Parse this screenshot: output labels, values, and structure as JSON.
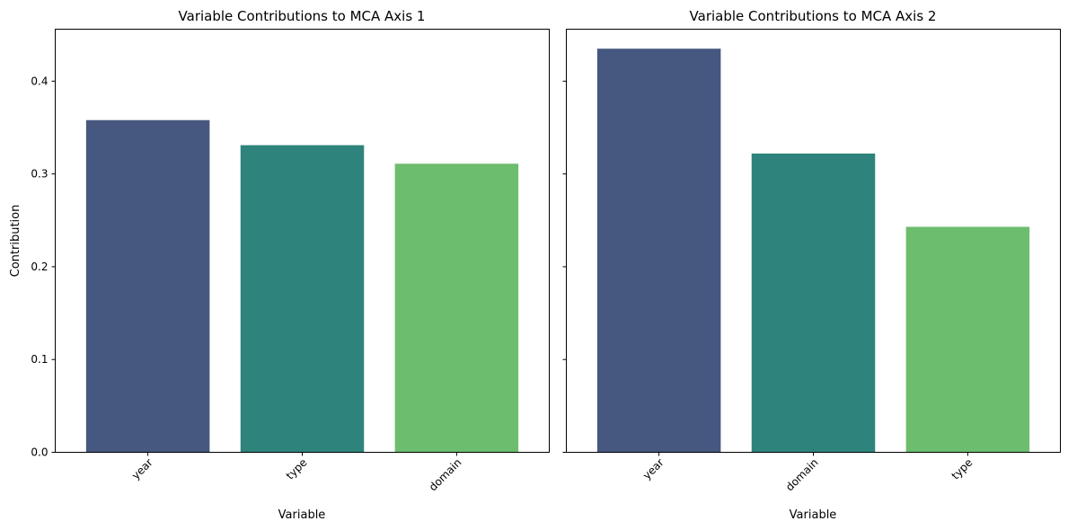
{
  "chart_data": [
    {
      "type": "bar",
      "title": "Variable Contributions to MCA Axis 1",
      "xlabel": "Variable",
      "ylabel": "Contribution",
      "categories": [
        "year",
        "type",
        "domain"
      ],
      "values": [
        0.358,
        0.331,
        0.311
      ],
      "colors": [
        "#46587f",
        "#2e847c",
        "#6cbd6d"
      ],
      "ylim": [
        0,
        0.456
      ],
      "yticks": [
        "0.0",
        "0.1",
        "0.2",
        "0.3",
        "0.4"
      ],
      "grid": false,
      "legend": "none"
    },
    {
      "type": "bar",
      "title": "Variable Contributions to MCA Axis 2",
      "xlabel": "Variable",
      "ylabel": "",
      "categories": [
        "year",
        "domain",
        "type"
      ],
      "values": [
        0.435,
        0.322,
        0.243
      ],
      "colors": [
        "#46587f",
        "#2e847c",
        "#6cbd6d"
      ],
      "ylim": [
        0,
        0.456
      ],
      "yticks": [
        "0.0",
        "0.1",
        "0.2",
        "0.3",
        "0.4"
      ],
      "grid": false,
      "legend": "none",
      "sharey": true
    }
  ]
}
